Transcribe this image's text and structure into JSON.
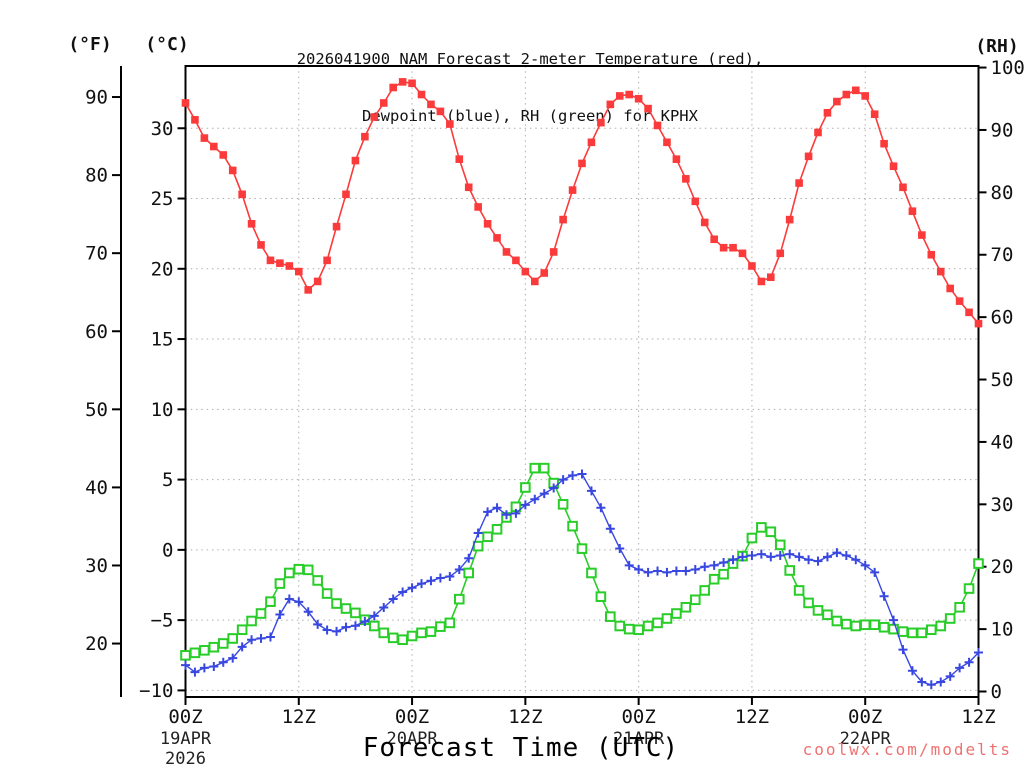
{
  "title": {
    "line1": "2026041900 NAM Forecast 2-meter Temperature (red),",
    "line2": "Dewpoint (blue), RH (green) for KPHX"
  },
  "axis_labels": {
    "fahrenheit": "(°F)",
    "celsius": "(°C)",
    "rh": "(RH)",
    "x": "Forecast Time (UTC)"
  },
  "watermark": "coolwx.com/modelts",
  "chart_data": {
    "type": "line",
    "title": "2026041900 NAM Forecast 2-meter Temperature (red), Dewpoint (blue), RH (green) for KPHX",
    "x_unit": "hours since 2026-04-19 00Z",
    "x_range_hours": [
      0,
      84
    ],
    "x_start_hour": 0,
    "x_step_hours": 1,
    "x_ticks": [
      {
        "hour": 0,
        "label": "00Z",
        "date": "19APR",
        "year": "2026"
      },
      {
        "hour": 12,
        "label": "12Z"
      },
      {
        "hour": 24,
        "label": "00Z",
        "date": "20APR"
      },
      {
        "hour": 36,
        "label": "12Z"
      },
      {
        "hour": 48,
        "label": "00Z",
        "date": "21APR"
      },
      {
        "hour": 60,
        "label": "12Z"
      },
      {
        "hour": 72,
        "label": "00Z",
        "date": "22APR"
      },
      {
        "hour": 84,
        "label": "12Z"
      }
    ],
    "y_axes": {
      "fahrenheit": {
        "ticks": [
          90,
          80,
          70,
          60,
          50,
          40,
          30,
          20
        ]
      },
      "celsius": {
        "ticks": [
          30,
          25,
          20,
          15,
          10,
          5,
          0,
          -5,
          -10
        ],
        "range": [
          -10.47,
          34.43
        ]
      },
      "rh": {
        "ticks": [
          100,
          90,
          80,
          70,
          60,
          50,
          40,
          30,
          20,
          10,
          0
        ],
        "range": [
          -0.88,
          100.25
        ]
      }
    },
    "gridlines": {
      "horizontal_celsius": [
        30,
        25,
        20,
        15,
        10,
        5,
        0,
        -5,
        -10
      ],
      "vertical_hours": [
        12,
        24,
        36,
        48,
        60,
        72
      ],
      "style": "dotted"
    },
    "colors": {
      "temperature": "#fb3b3b",
      "dewpoint": "#3847e0",
      "rh": "#28cd28",
      "grid": "#aeaeae",
      "axis": "#000000"
    },
    "series": [
      {
        "name": "2-meter Temperature",
        "unit": "°C",
        "axis": "celsius",
        "color": "#fb3b3b",
        "marker": "filled-square",
        "values": [
          31.8,
          30.6,
          29.3,
          28.7,
          28.1,
          27.0,
          25.3,
          23.2,
          21.7,
          20.6,
          20.4,
          20.2,
          19.8,
          18.5,
          19.1,
          20.6,
          23.0,
          25.3,
          27.7,
          29.4,
          30.8,
          31.8,
          32.9,
          33.3,
          33.2,
          32.4,
          31.7,
          31.2,
          30.3,
          27.8,
          25.8,
          24.4,
          23.2,
          22.2,
          21.2,
          20.6,
          19.8,
          19.1,
          19.7,
          21.2,
          23.5,
          25.6,
          27.5,
          29.0,
          30.4,
          31.7,
          32.3,
          32.4,
          32.1,
          31.4,
          30.2,
          29.0,
          27.8,
          26.4,
          24.8,
          23.3,
          22.1,
          21.5,
          21.5,
          21.1,
          20.2,
          19.1,
          19.4,
          21.1,
          23.5,
          26.1,
          28.0,
          29.7,
          31.1,
          31.9,
          32.4,
          32.7,
          32.3,
          31.0,
          28.9,
          27.3,
          25.8,
          24.1,
          22.4,
          21.0,
          19.8,
          18.6,
          17.7,
          16.9,
          16.1
        ]
      },
      {
        "name": "Dewpoint",
        "unit": "°C",
        "axis": "celsius",
        "color": "#3847e0",
        "marker": "plus",
        "values": [
          -8.2,
          -8.7,
          -8.4,
          -8.3,
          -8.0,
          -7.7,
          -6.9,
          -6.4,
          -6.3,
          -6.2,
          -4.6,
          -3.5,
          -3.7,
          -4.4,
          -5.3,
          -5.7,
          -5.8,
          -5.5,
          -5.4,
          -5.1,
          -4.7,
          -4.1,
          -3.5,
          -3.0,
          -2.7,
          -2.4,
          -2.2,
          -2.0,
          -1.9,
          -1.4,
          -0.6,
          1.2,
          2.7,
          3.0,
          2.5,
          2.6,
          3.2,
          3.6,
          4.0,
          4.4,
          5.0,
          5.3,
          5.4,
          4.2,
          3.0,
          1.5,
          0.1,
          -1.1,
          -1.4,
          -1.6,
          -1.5,
          -1.6,
          -1.5,
          -1.5,
          -1.4,
          -1.2,
          -1.1,
          -0.9,
          -0.7,
          -0.5,
          -0.4,
          -0.3,
          -0.5,
          -0.4,
          -0.3,
          -0.5,
          -0.7,
          -0.8,
          -0.5,
          -0.2,
          -0.4,
          -0.7,
          -1.1,
          -1.6,
          -3.3,
          -5.0,
          -7.1,
          -8.6,
          -9.4,
          -9.6,
          -9.4,
          -9.0,
          -8.4,
          -8.0,
          -7.3
        ]
      },
      {
        "name": "RH",
        "unit": "%",
        "axis": "rh",
        "color": "#28cd28",
        "marker": "open-square",
        "values": [
          5.8,
          6.2,
          6.6,
          7.1,
          7.7,
          8.5,
          9.9,
          11.3,
          12.5,
          14.4,
          17.3,
          19.0,
          19.6,
          19.5,
          17.8,
          15.7,
          14.1,
          13.3,
          12.6,
          11.5,
          10.5,
          9.4,
          8.6,
          8.3,
          8.9,
          9.4,
          9.6,
          10.4,
          11.0,
          14.8,
          19.0,
          23.3,
          24.8,
          26.0,
          27.9,
          29.6,
          32.7,
          35.8,
          35.8,
          33.4,
          30.0,
          26.5,
          22.9,
          19.0,
          15.2,
          12.0,
          10.5,
          10.0,
          9.9,
          10.5,
          11.0,
          11.7,
          12.5,
          13.5,
          14.7,
          16.2,
          18.0,
          18.8,
          20.5,
          21.7,
          24.6,
          26.3,
          25.6,
          23.5,
          19.4,
          16.2,
          14.2,
          13.0,
          12.3,
          11.3,
          10.8,
          10.5,
          10.7,
          10.7,
          10.3,
          10.0,
          9.6,
          9.4,
          9.4,
          9.9,
          10.5,
          11.7,
          13.5,
          16.5,
          20.5
        ]
      }
    ]
  }
}
